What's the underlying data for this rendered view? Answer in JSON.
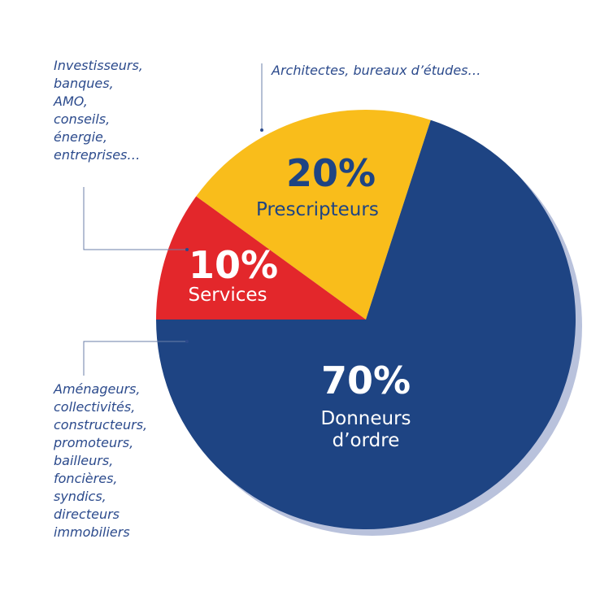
{
  "chart_data": {
    "type": "pie",
    "categories": [
      "Donneurs d’ordre",
      "Services",
      "Prescripteurs"
    ],
    "values": [
      70,
      10,
      20
    ],
    "value_labels": [
      "70%",
      "10%",
      "20%"
    ],
    "colors": [
      "#1e4483",
      "#e3272b",
      "#f9bd1b"
    ],
    "annotations": [
      {
        "lines": [
          "Aménageurs,",
          "collectivités,",
          "constructeurs,",
          "promoteurs,",
          "bailleurs,",
          "foncières,",
          "syndics,",
          "directeurs",
          "immobiliers"
        ]
      },
      {
        "lines": [
          "Investisseurs,",
          "banques,",
          "AMO,",
          "conseils,",
          "énergie,",
          "entreprises…"
        ]
      },
      {
        "lines": [
          "Architectes, bureaux d’études…"
        ]
      }
    ]
  }
}
